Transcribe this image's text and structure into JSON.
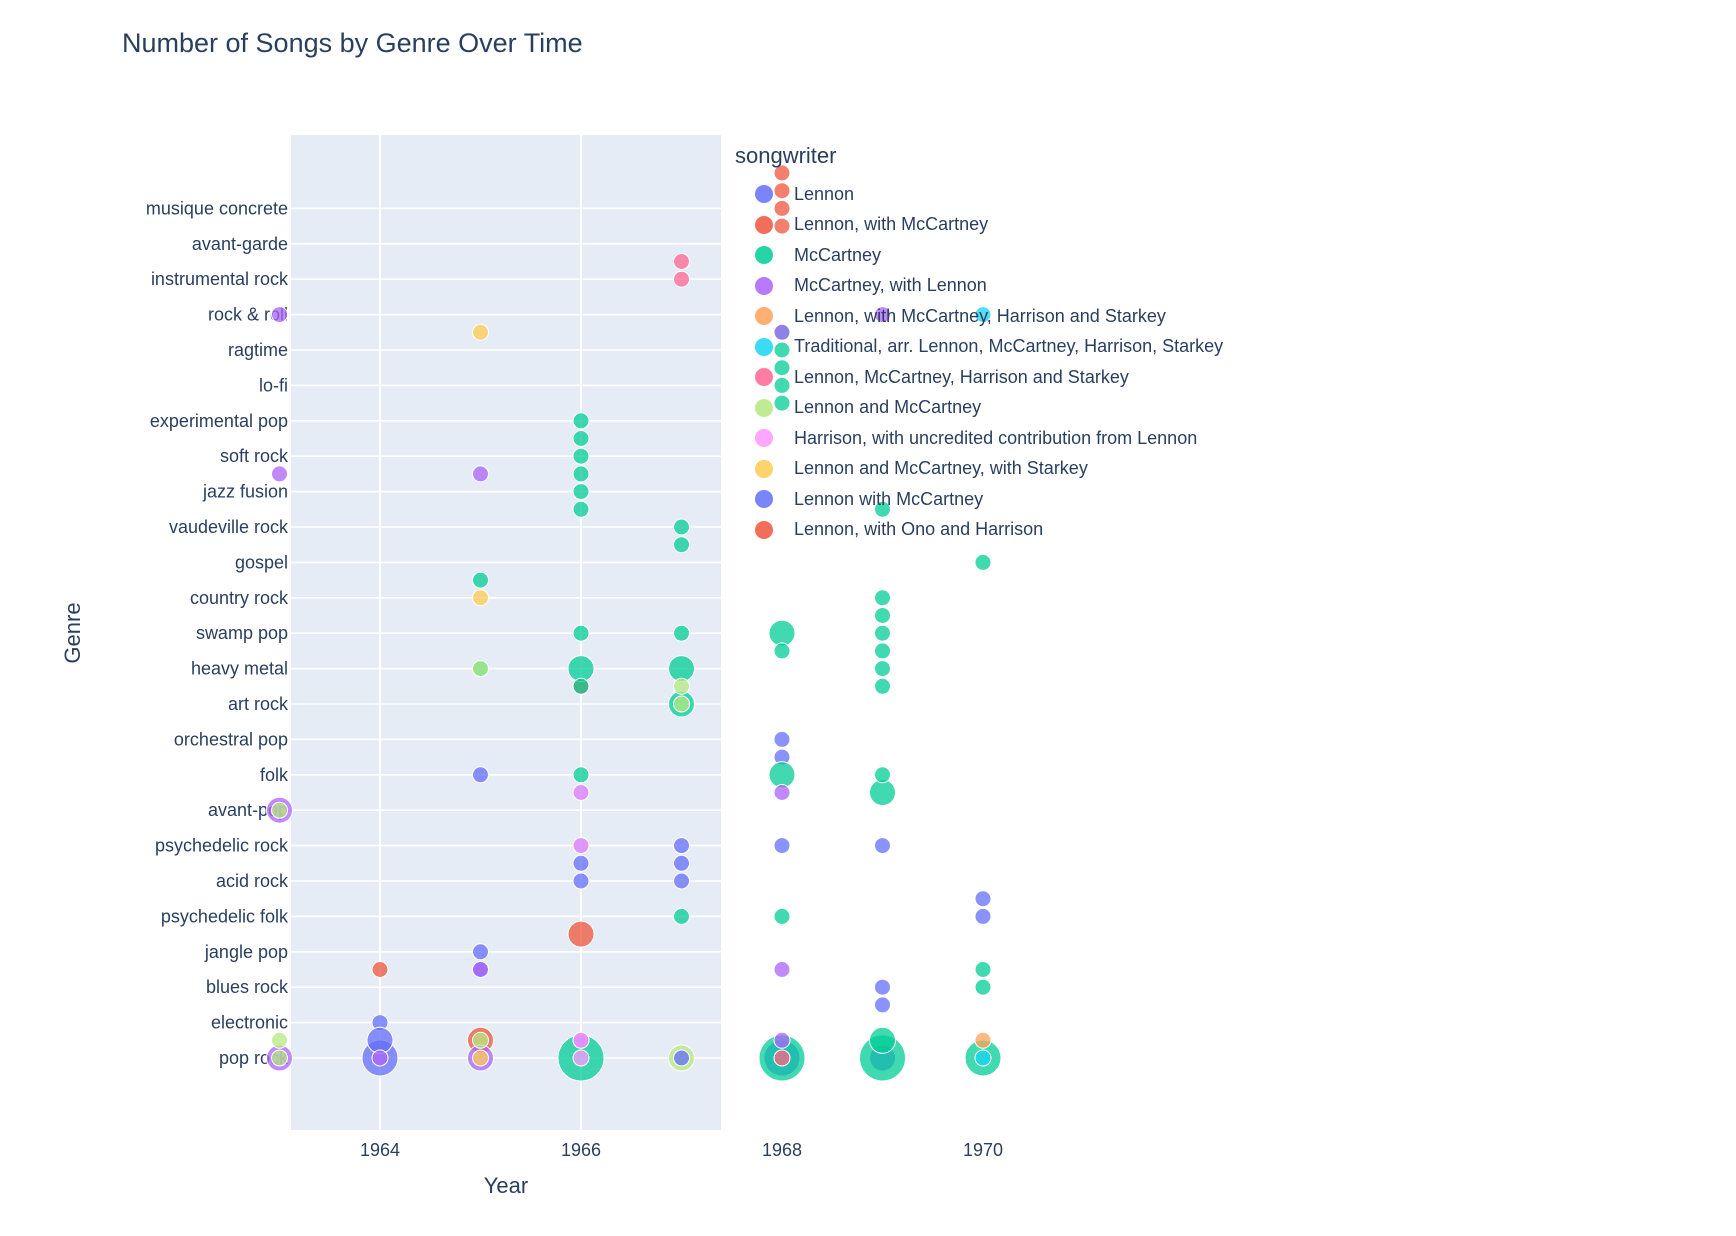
{
  "chart_data": {
    "type": "scatter",
    "title": "Number of Songs by Genre Over Time",
    "xlabel": "Year",
    "ylabel": "Genre",
    "xlim": [
      1962.5,
      1970.8
    ],
    "x_ticks": [
      1964,
      1966,
      1968,
      1970
    ],
    "y_categories": [
      "pop rock",
      "electronic",
      "blues rock",
      "jangle pop",
      "psychedelic folk",
      "acid rock",
      "psychedelic rock",
      "avant-pop",
      "folk",
      "orchestral pop",
      "art rock",
      "heavy metal",
      "swamp pop",
      "country rock",
      "gospel",
      "vaudeville rock",
      "jazz fusion",
      "soft rock",
      "experimental pop",
      "lo-fi",
      "ragtime",
      "rock & roll",
      "instrumental rock",
      "avant-garde",
      "musique concrete"
    ],
    "legend_title": "songwriter",
    "series": [
      {
        "name": "Lennon",
        "color": "#636efa",
        "points": [
          [
            1964,
            0,
            3
          ],
          [
            1964,
            1,
            1
          ],
          [
            1964,
            0.5,
            2
          ],
          [
            1965,
            2.5,
            1
          ],
          [
            1965,
            3,
            1
          ],
          [
            1965,
            8,
            1
          ],
          [
            1966,
            6,
            1
          ],
          [
            1966,
            5.5,
            1
          ],
          [
            1966,
            5,
            1
          ],
          [
            1966,
            7.5,
            1
          ],
          [
            1967,
            6,
            1
          ],
          [
            1967,
            5.5,
            1
          ],
          [
            1967,
            5,
            1
          ],
          [
            1968,
            0,
            3
          ],
          [
            1968,
            6,
            1
          ],
          [
            1968,
            8.5,
            1
          ],
          [
            1968,
            9,
            1
          ],
          [
            1969,
            0,
            2
          ],
          [
            1969,
            6,
            1
          ],
          [
            1969,
            2,
            1
          ],
          [
            1969,
            1.5,
            1
          ],
          [
            1970,
            4.5,
            1
          ],
          [
            1970,
            4,
            1
          ]
        ]
      },
      {
        "name": "Lennon, with McCartney",
        "color": "#EF553B",
        "points": [
          [
            1964,
            2.5,
            1
          ],
          [
            1965,
            0.5,
            2
          ],
          [
            1966,
            3.5,
            2
          ],
          [
            1966,
            10.5,
            1
          ],
          [
            1968,
            23.5,
            1
          ],
          [
            1968,
            24,
            1
          ],
          [
            1968,
            24.5,
            1
          ],
          [
            1968,
            25,
            1
          ],
          [
            1968,
            0,
            1
          ]
        ]
      },
      {
        "name": "McCartney",
        "color": "#00cc96",
        "points": [
          [
            1965,
            13.5,
            1
          ],
          [
            1965,
            11,
            1
          ],
          [
            1966,
            0,
            4
          ],
          [
            1966,
            11,
            2
          ],
          [
            1966,
            10.5,
            1
          ],
          [
            1966,
            12,
            1
          ],
          [
            1966,
            8,
            1
          ],
          [
            1966,
            15.5,
            1
          ],
          [
            1966,
            16,
            1
          ],
          [
            1966,
            16.5,
            1
          ],
          [
            1966,
            17,
            1
          ],
          [
            1966,
            17.5,
            1
          ],
          [
            1966,
            18,
            1
          ],
          [
            1967,
            11,
            2
          ],
          [
            1967,
            12,
            1
          ],
          [
            1967,
            10,
            2
          ],
          [
            1967,
            15,
            1
          ],
          [
            1967,
            14.5,
            1
          ],
          [
            1967,
            4,
            1
          ],
          [
            1968,
            0,
            4
          ],
          [
            1968,
            12,
            2
          ],
          [
            1968,
            11.5,
            1
          ],
          [
            1968,
            8,
            2
          ],
          [
            1968,
            18.5,
            1
          ],
          [
            1968,
            19,
            1
          ],
          [
            1968,
            19.5,
            1
          ],
          [
            1968,
            20,
            1
          ],
          [
            1968,
            20.5,
            1
          ],
          [
            1968,
            4,
            1
          ],
          [
            1969,
            0,
            4
          ],
          [
            1969,
            0.5,
            2
          ],
          [
            1969,
            7.5,
            2
          ],
          [
            1969,
            8,
            1
          ],
          [
            1969,
            10.5,
            1
          ],
          [
            1969,
            11,
            1
          ],
          [
            1969,
            11.5,
            1
          ],
          [
            1969,
            12,
            1
          ],
          [
            1969,
            12.5,
            1
          ],
          [
            1969,
            13,
            1
          ],
          [
            1969,
            15.5,
            1
          ],
          [
            1970,
            0,
            3
          ],
          [
            1970,
            2,
            1
          ],
          [
            1970,
            2.5,
            1
          ],
          [
            1970,
            14,
            1
          ]
        ]
      },
      {
        "name": "McCartney, with Lennon",
        "color": "#ab63fa",
        "points": [
          [
            1963,
            0,
            2
          ],
          [
            1963,
            7,
            2
          ],
          [
            1963,
            16.5,
            1
          ],
          [
            1963,
            21,
            1
          ],
          [
            1964,
            0,
            1
          ],
          [
            1965,
            0,
            2
          ],
          [
            1965,
            2.5,
            1
          ],
          [
            1965,
            16.5,
            1
          ],
          [
            1966,
            0.5,
            1
          ],
          [
            1968,
            0.5,
            1
          ],
          [
            1968,
            7.5,
            1
          ],
          [
            1968,
            2.5,
            1
          ],
          [
            1968,
            20.5,
            1
          ],
          [
            1969,
            21,
            1
          ]
        ]
      },
      {
        "name": "Lennon, with McCartney, Harrison and Starkey",
        "color": "#FFA15A",
        "points": [
          [
            1970,
            0.5,
            1
          ]
        ]
      },
      {
        "name": "Traditional, arr. Lennon, McCartney, Harrison, Starkey",
        "color": "#19d3f3",
        "points": [
          [
            1970,
            21,
            1
          ],
          [
            1970,
            0,
            1
          ]
        ]
      },
      {
        "name": "Lennon, McCartney, Harrison and Starkey",
        "color": "#FF6692",
        "points": [
          [
            1967,
            22,
            1
          ],
          [
            1967,
            22.5,
            1
          ],
          [
            1968,
            0,
            1
          ]
        ]
      },
      {
        "name": "Lennon and McCartney",
        "color": "#B6E880",
        "points": [
          [
            1963,
            0,
            1
          ],
          [
            1963,
            0.5,
            1
          ],
          [
            1963,
            7,
            1
          ],
          [
            1965,
            11,
            1
          ],
          [
            1965,
            0.5,
            1
          ],
          [
            1967,
            0,
            2
          ],
          [
            1967,
            10.5,
            1
          ],
          [
            1967,
            10,
            1
          ]
        ]
      },
      {
        "name": "Harrison, with uncredited contribution from Lennon",
        "color": "#FF97FF",
        "points": [
          [
            1966,
            6,
            1
          ],
          [
            1966,
            7.5,
            1
          ],
          [
            1966,
            0.5,
            1
          ],
          [
            1966,
            0,
            1
          ]
        ]
      },
      {
        "name": "Lennon and McCartney, with Starkey",
        "color": "#FECB52",
        "points": [
          [
            1965,
            20.5,
            1
          ],
          [
            1965,
            13,
            1
          ],
          [
            1965,
            0,
            1
          ]
        ]
      },
      {
        "name": "Lennon with McCartney",
        "color": "#636efa",
        "points": [
          [
            1967,
            0,
            1
          ]
        ]
      },
      {
        "name": "Lennon, with Ono and Harrison",
        "color": "#EF553B",
        "points": []
      }
    ]
  }
}
